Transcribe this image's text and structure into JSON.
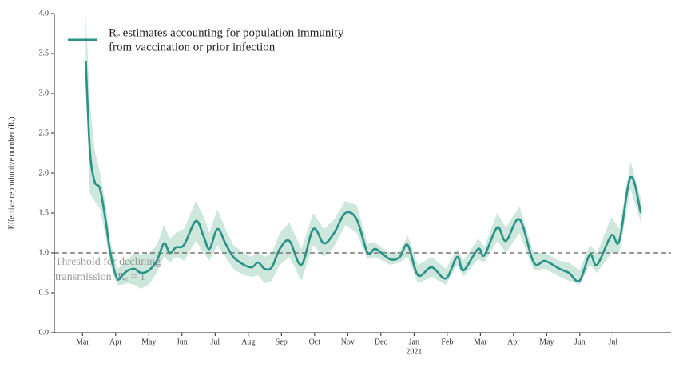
{
  "chart_data": {
    "type": "line",
    "ylabel": "Effective reproductive number (Rₑ)",
    "legend": [
      "Rₑ estimates accounting for population immunity",
      "from vaccination or prior infection"
    ],
    "legend_loc": "upper left",
    "threshold": 1,
    "threshold_label": [
      "Threshold for declining",
      "transmission: Rₑ = 1"
    ],
    "year_label": "2021",
    "xlim": [
      -0.85,
      17.75
    ],
    "xticks": [
      {
        "value": 0,
        "label": "Mar"
      },
      {
        "value": 1,
        "label": "Apr"
      },
      {
        "value": 2,
        "label": "May"
      },
      {
        "value": 3,
        "label": "Jun"
      },
      {
        "value": 4,
        "label": "Jul"
      },
      {
        "value": 5,
        "label": "Aug"
      },
      {
        "value": 6,
        "label": "Sep"
      },
      {
        "value": 7,
        "label": "Oct"
      },
      {
        "value": 8,
        "label": "Nov"
      },
      {
        "value": 9,
        "label": "Dec"
      },
      {
        "value": 10,
        "label": "Jan"
      },
      {
        "value": 11,
        "label": "Feb"
      },
      {
        "value": 12,
        "label": "Mar"
      },
      {
        "value": 13,
        "label": "Apr"
      },
      {
        "value": 14,
        "label": "May"
      },
      {
        "value": 15,
        "label": "Jun"
      },
      {
        "value": 16,
        "label": "Jul"
      }
    ],
    "ylim": [
      0,
      4
    ],
    "yticks": [
      {
        "value": 0,
        "label": "0.0"
      },
      0.5,
      {
        "value": 1,
        "label": "1.0"
      },
      1.5,
      {
        "value": 2,
        "label": "2.0"
      },
      2.5,
      {
        "value": 3,
        "label": "3.0"
      },
      3.5,
      {
        "value": 4,
        "label": "4.0"
      }
    ],
    "color": "#2a9186",
    "band_color": "#cde7dd",
    "threshold_color": "#777777",
    "x": [
      0.1,
      0.22,
      0.36,
      0.53,
      0.7,
      0.84,
      1.04,
      1.2,
      1.37,
      1.57,
      1.76,
      2.0,
      2.24,
      2.46,
      2.63,
      2.82,
      3.06,
      3.42,
      3.66,
      3.83,
      4.07,
      4.31,
      4.55,
      4.87,
      5.11,
      5.3,
      5.49,
      5.71,
      5.95,
      6.24,
      6.6,
      6.96,
      7.28,
      7.59,
      7.93,
      8.27,
      8.6,
      8.84,
      9.28,
      9.57,
      9.81,
      10.12,
      10.53,
      10.96,
      11.3,
      11.49,
      11.93,
      12.12,
      12.51,
      12.77,
      13.18,
      13.61,
      13.95,
      14.39,
      14.67,
      14.99,
      15.3,
      15.52,
      15.95,
      16.19,
      16.53,
      16.84
    ],
    "values": [
      3.4,
      2.3,
      1.9,
      1.8,
      1.4,
      1.0,
      0.68,
      0.72,
      0.78,
      0.8,
      0.75,
      0.78,
      0.9,
      1.12,
      1.0,
      1.07,
      1.1,
      1.4,
      1.2,
      1.05,
      1.3,
      1.12,
      0.95,
      0.85,
      0.82,
      0.88,
      0.8,
      0.82,
      1.05,
      1.15,
      0.85,
      1.3,
      1.12,
      1.25,
      1.5,
      1.42,
      1.0,
      1.05,
      0.92,
      0.95,
      1.1,
      0.72,
      0.82,
      0.68,
      0.95,
      0.78,
      1.05,
      0.97,
      1.32,
      1.15,
      1.42,
      0.88,
      0.9,
      0.8,
      0.75,
      0.65,
      0.98,
      0.85,
      1.22,
      1.15,
      1.95,
      1.5
    ],
    "lower": [
      3.3,
      1.75,
      1.65,
      1.55,
      1.2,
      0.85,
      0.6,
      0.6,
      0.62,
      0.6,
      0.55,
      0.6,
      0.75,
      0.95,
      0.88,
      0.95,
      0.9,
      1.15,
      1.0,
      0.9,
      1.1,
      0.95,
      0.8,
      0.72,
      0.7,
      0.72,
      0.62,
      0.65,
      0.85,
      0.95,
      0.65,
      1.1,
      0.95,
      1.08,
      1.35,
      1.25,
      0.92,
      0.95,
      0.85,
      0.88,
      0.95,
      0.62,
      0.7,
      0.6,
      0.85,
      0.7,
      0.92,
      0.88,
      1.15,
      1.0,
      1.25,
      0.78,
      0.8,
      0.7,
      0.65,
      0.6,
      0.85,
      0.75,
      1.0,
      1.0,
      1.8,
      1.38
    ],
    "upper": [
      4.0,
      2.9,
      2.3,
      2.0,
      1.6,
      1.15,
      0.8,
      0.85,
      0.92,
      1.0,
      0.98,
      1.0,
      1.1,
      1.35,
      1.18,
      1.25,
      1.3,
      1.65,
      1.45,
      1.25,
      1.55,
      1.3,
      1.1,
      1.0,
      0.95,
      1.02,
      0.95,
      1.0,
      1.25,
      1.38,
      1.05,
      1.5,
      1.3,
      1.42,
      1.65,
      1.6,
      1.12,
      1.12,
      1.0,
      1.02,
      1.22,
      0.85,
      0.95,
      0.8,
      1.05,
      0.9,
      1.18,
      1.08,
      1.5,
      1.32,
      1.58,
      1.0,
      1.0,
      0.9,
      0.88,
      0.78,
      1.1,
      1.0,
      1.45,
      1.3,
      2.15,
      1.68
    ]
  }
}
